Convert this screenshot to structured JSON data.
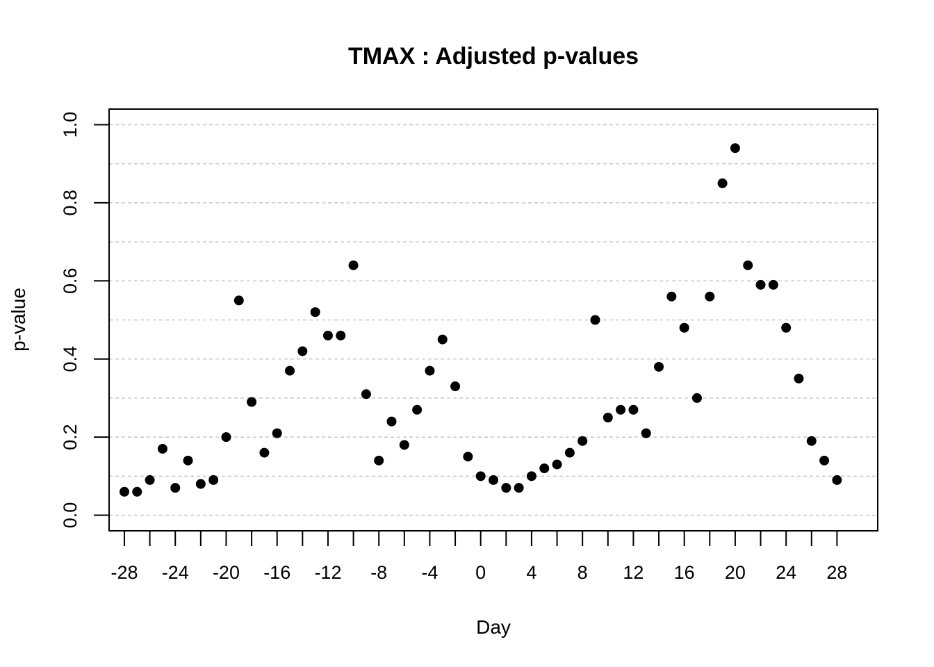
{
  "chart_data": {
    "type": "scatter",
    "title": "TMAX : Adjusted p-values",
    "xlabel": "Day",
    "ylabel": "p-value",
    "xlim": [
      -29.2,
      31.2
    ],
    "ylim": [
      -0.04,
      1.04
    ],
    "x_ticks": [
      -28,
      -26,
      -24,
      -22,
      -20,
      -18,
      -16,
      -14,
      -12,
      -10,
      -8,
      -6,
      -4,
      -2,
      0,
      2,
      4,
      6,
      8,
      10,
      12,
      14,
      16,
      18,
      20,
      22,
      24,
      26,
      28
    ],
    "x_tick_labels": [
      "-28",
      "",
      "-24",
      "",
      "-20",
      "",
      "-16",
      "",
      "-12",
      "",
      "-8",
      "",
      "-4",
      "",
      "0",
      "",
      "4",
      "",
      "8",
      "",
      "12",
      "",
      "16",
      "",
      "20",
      "",
      "24",
      "",
      "28"
    ],
    "y_ticks": [
      0.0,
      0.2,
      0.4,
      0.6,
      0.8,
      1.0
    ],
    "y_tick_labels": [
      "0.0",
      "0.2",
      "0.4",
      "0.6",
      "0.8",
      "1.0"
    ],
    "grid_y": [
      0.0,
      0.1,
      0.2,
      0.3,
      0.4,
      0.5,
      0.6,
      0.7,
      0.8,
      0.9,
      1.0
    ],
    "grid": true,
    "colors": {
      "points": "#000000",
      "grid": "#c8c8c8"
    },
    "x": [
      -28,
      -27,
      -26,
      -25,
      -24,
      -23,
      -22,
      -21,
      -20,
      -19,
      -18,
      -17,
      -16,
      -15,
      -14,
      -13,
      -12,
      -11,
      -10,
      -9,
      -8,
      -7,
      -6,
      -5,
      -4,
      -3,
      -2,
      -1,
      0,
      1,
      2,
      3,
      4,
      5,
      6,
      7,
      8,
      9,
      10,
      11,
      12,
      13,
      14,
      15,
      16,
      17,
      18,
      19,
      20,
      21,
      22,
      23,
      24,
      25,
      26,
      27,
      28
    ],
    "y": [
      0.06,
      0.06,
      0.09,
      0.17,
      0.07,
      0.14,
      0.08,
      0.09,
      0.2,
      0.55,
      0.29,
      0.16,
      0.21,
      0.37,
      0.42,
      0.52,
      0.46,
      0.46,
      0.64,
      0.31,
      0.14,
      0.24,
      0.18,
      0.27,
      0.37,
      0.45,
      0.33,
      0.15,
      0.1,
      0.09,
      0.07,
      0.07,
      0.1,
      0.12,
      0.13,
      0.16,
      0.19,
      0.5,
      0.25,
      0.27,
      0.27,
      0.21,
      0.38,
      0.56,
      0.48,
      0.3,
      0.56,
      0.85,
      0.94,
      0.64,
      0.59,
      0.59,
      0.48,
      0.35,
      0.19,
      0.14,
      0.09
    ]
  }
}
